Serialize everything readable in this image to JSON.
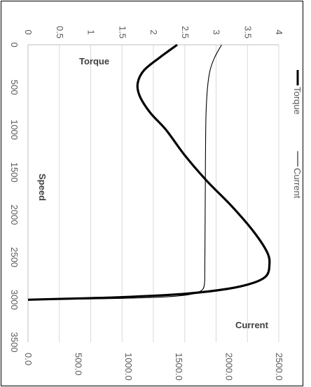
{
  "chart_data": {
    "type": "line",
    "rotated": "90deg-clockwise",
    "x_axis": {
      "title": "Speed",
      "ticks": [
        "0",
        "500",
        "1000",
        "1500",
        "2000",
        "2500",
        "3000",
        "3500"
      ],
      "range": [
        0,
        3500
      ]
    },
    "y_axis_primary": {
      "title": "Torque",
      "ticks": [
        "0",
        "0.5",
        "1",
        "1.5",
        "2",
        "2.5",
        "3",
        "3.5",
        "4"
      ],
      "range": [
        0,
        4
      ]
    },
    "y_axis_secondary": {
      "title": "Current",
      "ticks": [
        "0.0",
        "500.0",
        "1000.0",
        "1500.0",
        "2000.0",
        "2500.0"
      ],
      "range": [
        0,
        2500
      ]
    },
    "series": [
      {
        "name": "Torque",
        "axis": "primary",
        "color": "#000000",
        "weight": "thick",
        "points": [
          [
            0,
            2.38
          ],
          [
            150,
            2.1
          ],
          [
            300,
            1.85
          ],
          [
            450,
            1.75
          ],
          [
            600,
            1.78
          ],
          [
            800,
            1.95
          ],
          [
            1000,
            2.2
          ],
          [
            1300,
            2.5
          ],
          [
            1600,
            2.85
          ],
          [
            1900,
            3.25
          ],
          [
            2200,
            3.6
          ],
          [
            2450,
            3.82
          ],
          [
            2600,
            3.85
          ],
          [
            2720,
            3.8
          ],
          [
            2800,
            3.6
          ],
          [
            2870,
            3.2
          ],
          [
            2930,
            2.5
          ],
          [
            2970,
            1.5
          ],
          [
            2985,
            0.8
          ],
          [
            2995,
            0.25
          ],
          [
            3000,
            0.0
          ]
        ]
      },
      {
        "name": "Current",
        "axis": "secondary",
        "color": "#000000",
        "weight": "thin",
        "points": [
          [
            0,
            1930
          ],
          [
            150,
            1860
          ],
          [
            300,
            1815
          ],
          [
            500,
            1790
          ],
          [
            800,
            1775
          ],
          [
            1200,
            1770
          ],
          [
            1600,
            1768
          ],
          [
            2000,
            1766
          ],
          [
            2400,
            1764
          ],
          [
            2700,
            1762
          ],
          [
            2800,
            1760
          ],
          [
            2880,
            1740
          ],
          [
            2930,
            1650
          ],
          [
            2960,
            1450
          ],
          [
            2975,
            1200
          ],
          [
            2985,
            900
          ],
          [
            2993,
            500
          ],
          [
            3000,
            0
          ]
        ]
      }
    ],
    "legend": {
      "placement": "right",
      "entries": [
        "Torque",
        "Current"
      ]
    },
    "grid": "major-vertical-gridlines-at-torque-ticks"
  }
}
